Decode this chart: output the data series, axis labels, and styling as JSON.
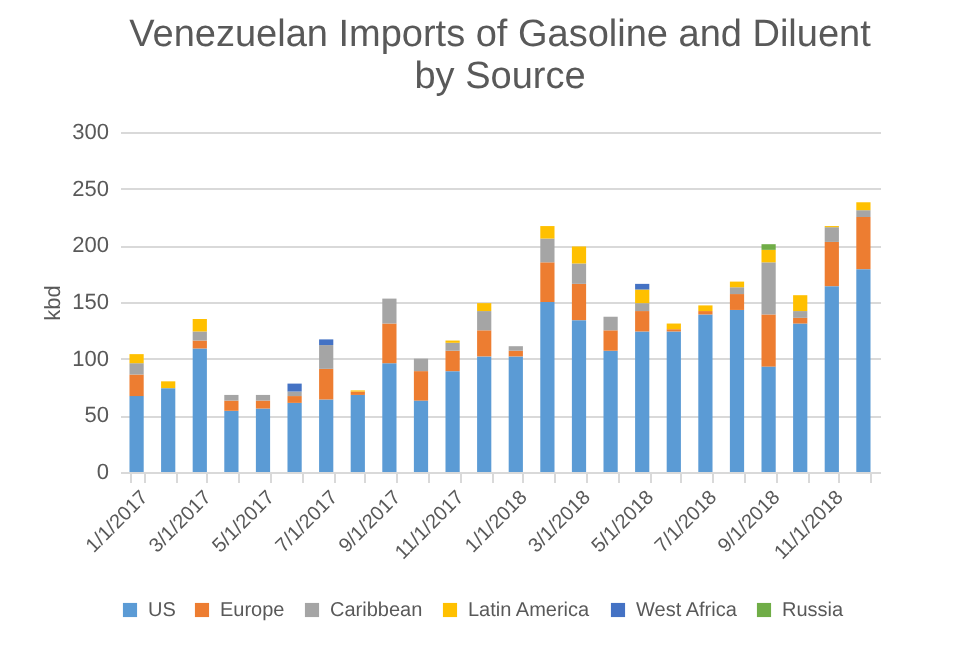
{
  "chart_data": {
    "type": "bar",
    "title": "Venezuelan Imports of Gasoline and Diluent by Source",
    "ylabel": "kbd",
    "stacked": true,
    "grid": "y",
    "legend": "bottom",
    "categories": [
      "1/1/2017",
      null,
      "3/1/2017",
      null,
      "5/1/2017",
      null,
      "7/1/2017",
      null,
      "9/1/2017",
      null,
      "11/1/2017",
      null,
      "1/1/2018",
      null,
      "3/1/2018",
      null,
      "5/1/2018",
      null,
      "7/1/2018",
      null,
      "9/1/2018",
      null,
      "11/1/2018",
      null
    ],
    "ylim": [
      0,
      300
    ],
    "yticks": [
      0,
      50,
      100,
      150,
      200,
      250,
      300
    ],
    "series": [
      {
        "name": "US",
        "color": "#5b9bd5",
        "values": [
          67,
          74,
          109,
          54,
          56,
          61,
          64,
          68,
          96,
          63,
          89,
          102,
          102,
          150,
          134,
          107,
          124,
          124,
          139,
          143,
          93,
          131,
          164,
          179
        ]
      },
      {
        "name": "Europe",
        "color": "#ed7d31",
        "values": [
          19,
          null,
          7,
          9,
          7,
          6,
          27,
          3,
          35,
          26,
          18,
          23,
          5,
          35,
          32,
          18,
          18,
          2,
          3,
          14,
          46,
          5,
          39,
          46
        ]
      },
      {
        "name": "Caribbean",
        "color": "#a5a5a5",
        "values": [
          10,
          null,
          8,
          5,
          5,
          4,
          21,
          null,
          22,
          11,
          7,
          17,
          4,
          21,
          18,
          12,
          7,
          null,
          null,
          6,
          46,
          6,
          13,
          6
        ]
      },
      {
        "name": "Latin America",
        "color": "#ffc000",
        "values": [
          8,
          6,
          11,
          null,
          null,
          null,
          null,
          1,
          null,
          null,
          2,
          7,
          null,
          11,
          15,
          null,
          12,
          5,
          5,
          5,
          11,
          14,
          1,
          7
        ]
      },
      {
        "name": "West Africa",
        "color": "#4472c4",
        "values": [
          null,
          null,
          null,
          null,
          null,
          7,
          5,
          null,
          null,
          null,
          null,
          null,
          null,
          null,
          null,
          null,
          5,
          null,
          null,
          null,
          null,
          null,
          null,
          null
        ]
      },
      {
        "name": "Russia",
        "color": "#70ad47",
        "values": [
          null,
          null,
          null,
          null,
          null,
          null,
          null,
          null,
          null,
          null,
          null,
          null,
          null,
          null,
          null,
          null,
          null,
          null,
          null,
          null,
          5,
          null,
          null,
          null
        ]
      }
    ]
  }
}
